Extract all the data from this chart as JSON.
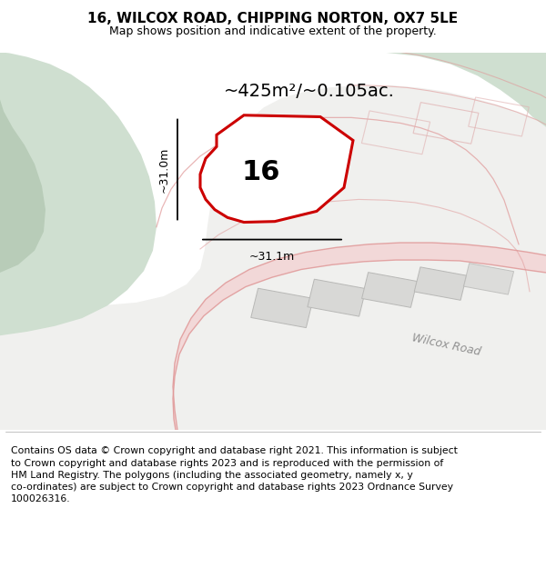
{
  "title": "16, WILCOX ROAD, CHIPPING NORTON, OX7 5LE",
  "subtitle": "Map shows position and indicative extent of the property.",
  "footer": "Contains OS data © Crown copyright and database right 2021. This information is subject\nto Crown copyright and database rights 2023 and is reproduced with the permission of\nHM Land Registry. The polygons (including the associated geometry, namely x, y\nco-ordinates) are subject to Crown copyright and database rights 2023 Ordnance Survey\n100026316.",
  "area_label": "~425m²/~0.105ac.",
  "height_label": "~31.0m",
  "width_label": "~31.1m",
  "plot_number": "16",
  "bg_green": "#cfdfd0",
  "bg_white": "#f5f5f3",
  "plot_fill": "#ffffff",
  "plot_outline": "#cc0000",
  "road_fill": "#f2d8d8",
  "road_line": "#e09898",
  "building_fill": "#d8d8d6",
  "building_line": "#b8b8b6",
  "title_fontsize": 11,
  "subtitle_fontsize": 9,
  "footer_fontsize": 7.8
}
